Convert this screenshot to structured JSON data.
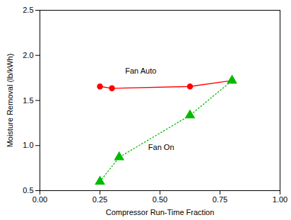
{
  "chart_data": {
    "type": "line",
    "xlabel": "Compressor Run-Time Fraction",
    "ylabel": "Moisture Removal (lb/kWh)",
    "series": [
      {
        "name": "Fan Auto",
        "color": "#FF0000",
        "marker": "circle",
        "line_style": "solid",
        "x": [
          0.25,
          0.3,
          0.625,
          0.8
        ],
        "values": [
          1.655,
          1.635,
          1.655,
          1.72
        ]
      },
      {
        "name": "Fan On",
        "color": "#00BB00",
        "marker": "triangle",
        "line_style": "dotted",
        "x": [
          0.25,
          0.33,
          0.625,
          0.8
        ],
        "values": [
          0.6,
          0.87,
          1.335,
          1.72
        ]
      }
    ],
    "annotations": [
      {
        "text": "Fan Auto",
        "x": 0.42,
        "y": 1.8
      },
      {
        "text": "Fan On",
        "x": 0.505,
        "y": 0.95
      }
    ],
    "xlim": [
      0.0,
      1.0
    ],
    "ylim": [
      0.5,
      2.5
    ],
    "xticks": [
      {
        "value": 0,
        "label": "0.00"
      },
      0.25,
      {
        "value": 0.5,
        "label": "0.50"
      },
      0.75,
      {
        "value": 1,
        "label": "1.00"
      }
    ],
    "yticks": [
      0.5,
      {
        "value": 1,
        "label": "1.0"
      },
      1.5,
      {
        "value": 2,
        "label": "2.0"
      },
      2.5
    ],
    "grid": false
  }
}
